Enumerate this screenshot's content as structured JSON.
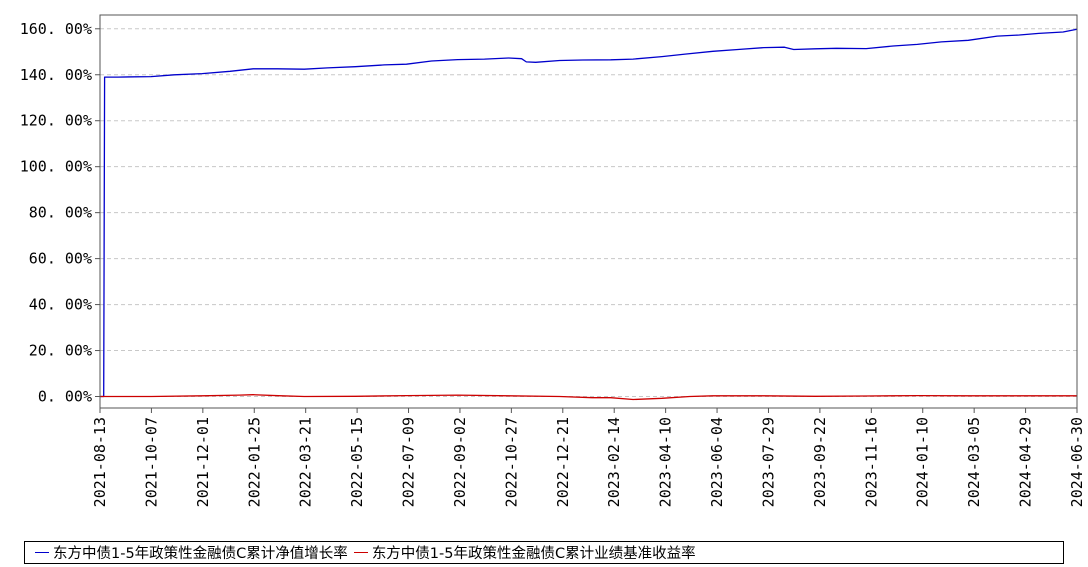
{
  "chart_data": {
    "type": "line",
    "title": "",
    "ylim": [
      -5,
      166
    ],
    "yticks": [
      0,
      20,
      40,
      60,
      80,
      100,
      120,
      140,
      160
    ],
    "ytick_labels": [
      "0. 00%",
      "20. 00%",
      "40. 00%",
      "60. 00%",
      "80. 00%",
      "100. 00%",
      "120. 00%",
      "140. 00%",
      "160. 00%"
    ],
    "x_start": "2021-08-13",
    "x_end": "2024-06-30",
    "xtick_labels": [
      "2021-08-13",
      "2021-10-07",
      "2021-12-01",
      "2022-01-25",
      "2022-03-21",
      "2022-05-15",
      "2022-07-09",
      "2022-09-02",
      "2022-10-27",
      "2022-12-21",
      "2023-02-14",
      "2023-04-10",
      "2023-06-04",
      "2023-07-29",
      "2023-09-22",
      "2023-11-16",
      "2024-01-10",
      "2024-03-05",
      "2024-04-29",
      "2024-06-30"
    ],
    "grid": true,
    "legend_position": "bottom",
    "series": [
      {
        "name": "东方中债1-5年政策性金融债C累计净值增长率",
        "color": "#0000cc",
        "points": [
          [
            "2021-08-13",
            0.0
          ],
          [
            "2021-08-17",
            0.0
          ],
          [
            "2021-08-18",
            139.0
          ],
          [
            "2021-09-01",
            139.0
          ],
          [
            "2021-10-07",
            139.2
          ],
          [
            "2021-11-01",
            140.0
          ],
          [
            "2021-12-01",
            140.5
          ],
          [
            "2021-12-31",
            141.5
          ],
          [
            "2022-01-25",
            142.6
          ],
          [
            "2022-02-20",
            142.6
          ],
          [
            "2022-03-21",
            142.4
          ],
          [
            "2022-04-15",
            143.0
          ],
          [
            "2022-05-15",
            143.5
          ],
          [
            "2022-06-15",
            144.3
          ],
          [
            "2022-07-09",
            144.6
          ],
          [
            "2022-08-05",
            146.0
          ],
          [
            "2022-09-02",
            146.6
          ],
          [
            "2022-10-01",
            146.8
          ],
          [
            "2022-10-27",
            147.3
          ],
          [
            "2022-11-10",
            147.0
          ],
          [
            "2022-11-15",
            145.6
          ],
          [
            "2022-11-25",
            145.4
          ],
          [
            "2022-12-21",
            146.2
          ],
          [
            "2023-01-15",
            146.4
          ],
          [
            "2023-02-14",
            146.5
          ],
          [
            "2023-03-10",
            146.8
          ],
          [
            "2023-04-10",
            147.9
          ],
          [
            "2023-05-05",
            149.0
          ],
          [
            "2023-06-04",
            150.2
          ],
          [
            "2023-07-01",
            151.0
          ],
          [
            "2023-07-29",
            151.8
          ],
          [
            "2023-08-20",
            152.0
          ],
          [
            "2023-08-30",
            151.0
          ],
          [
            "2023-09-22",
            151.3
          ],
          [
            "2023-10-15",
            151.5
          ],
          [
            "2023-11-16",
            151.4
          ],
          [
            "2023-12-15",
            152.5
          ],
          [
            "2024-01-10",
            153.2
          ],
          [
            "2024-02-05",
            154.3
          ],
          [
            "2024-03-05",
            155.0
          ],
          [
            "2024-04-05",
            156.8
          ],
          [
            "2024-04-29",
            157.3
          ],
          [
            "2024-05-20",
            158.0
          ],
          [
            "2024-06-15",
            158.6
          ],
          [
            "2024-06-30",
            159.8
          ]
        ]
      },
      {
        "name": "东方中债1-5年政策性金融债C累计业绩基准收益率",
        "color": "#cc0000",
        "points": [
          [
            "2021-08-13",
            0.0
          ],
          [
            "2021-10-07",
            0.0
          ],
          [
            "2021-12-01",
            0.3
          ],
          [
            "2022-01-10",
            0.6
          ],
          [
            "2022-01-25",
            0.8
          ],
          [
            "2022-02-25",
            0.3
          ],
          [
            "2022-03-21",
            0.0
          ],
          [
            "2022-05-15",
            0.1
          ],
          [
            "2022-07-09",
            0.4
          ],
          [
            "2022-09-02",
            0.6
          ],
          [
            "2022-10-27",
            0.3
          ],
          [
            "2022-12-21",
            0.0
          ],
          [
            "2023-01-25",
            -0.5
          ],
          [
            "2023-02-14",
            -0.5
          ],
          [
            "2023-03-10",
            -1.3
          ],
          [
            "2023-04-10",
            -0.8
          ],
          [
            "2023-05-10",
            0.0
          ],
          [
            "2023-06-04",
            0.3
          ],
          [
            "2023-07-29",
            0.3
          ],
          [
            "2023-09-22",
            0.1
          ],
          [
            "2023-11-16",
            0.2
          ],
          [
            "2024-01-10",
            0.4
          ],
          [
            "2024-03-05",
            0.3
          ],
          [
            "2024-04-29",
            0.3
          ],
          [
            "2024-06-30",
            0.3
          ]
        ]
      }
    ]
  }
}
